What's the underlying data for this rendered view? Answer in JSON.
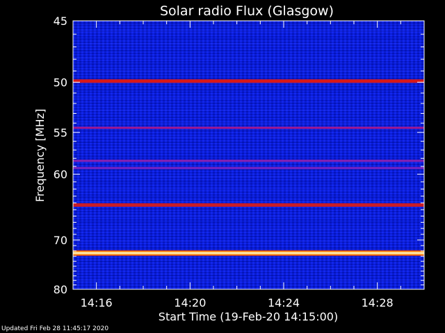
{
  "chart_data": {
    "type": "heatmap",
    "title": "Solar radio Flux (Glasgow)",
    "xlabel": "Start Time (19-Feb-20 14:15:00)",
    "ylabel": "Frequency [MHz]",
    "x_ticks": [
      "14:16",
      "14:20",
      "14:24",
      "14:28"
    ],
    "x_tick_minutes": [
      16,
      20,
      24,
      28
    ],
    "xlim_minutes": [
      15,
      30
    ],
    "y_ticks": [
      "45",
      "50",
      "55",
      "60",
      "70",
      "80"
    ],
    "y_tick_values": [
      45,
      50,
      55,
      60,
      70,
      80
    ],
    "ylim": [
      45,
      80
    ],
    "y_scale": "reciprocal",
    "background_level": "low",
    "bands": [
      {
        "freq_mhz": 49.9,
        "intensity": "medium-high",
        "color": "#d81818"
      },
      {
        "freq_mhz": 54.5,
        "intensity": "medium",
        "color": "#a01890"
      },
      {
        "freq_mhz": 58.3,
        "intensity": "low-medium",
        "color": "#8a20b0"
      },
      {
        "freq_mhz": 59.2,
        "intensity": "low-medium",
        "color": "#7a22c0"
      },
      {
        "freq_mhz": 64.3,
        "intensity": "medium-high",
        "color": "#c81c28"
      },
      {
        "freq_mhz": 72.4,
        "intensity": "high",
        "color": "#ffffd0"
      }
    ]
  },
  "footer": "Updated Fri Feb 28 11:45:17 2020"
}
